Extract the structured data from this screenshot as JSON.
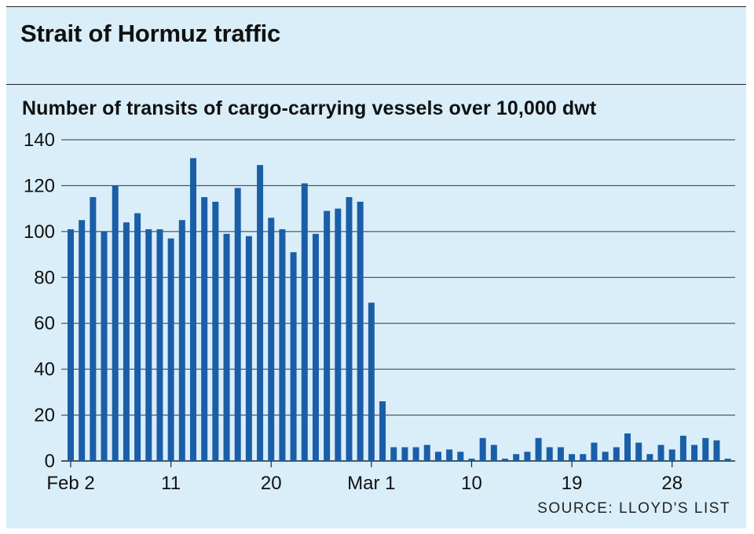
{
  "chart_data": {
    "type": "bar",
    "title": "Strait of Hormuz traffic",
    "subtitle": "Number of transits of cargo-carrying vessels over 10,000 dwt",
    "source": "SOURCE: LLOYD'S LIST",
    "ylim": [
      0,
      140
    ],
    "y_ticks": [
      "0",
      "20",
      "40",
      "60",
      "80",
      "100",
      "120",
      "140"
    ],
    "x_tick_labels": [
      "Feb 2",
      "11",
      "20",
      "Mar 1",
      "10",
      "19",
      "28"
    ],
    "grid": true,
    "bar_color": "#1b5ea8",
    "categories": [
      "Feb 2",
      "Feb 3",
      "Feb 4",
      "Feb 5",
      "Feb 6",
      "Feb 7",
      "Feb 8",
      "Feb 9",
      "Feb 10",
      "Feb 11",
      "Feb 12",
      "Feb 13",
      "Feb 14",
      "Feb 15",
      "Feb 16",
      "Feb 17",
      "Feb 18",
      "Feb 19",
      "Feb 20",
      "Feb 21",
      "Feb 22",
      "Feb 23",
      "Feb 24",
      "Feb 25",
      "Feb 26",
      "Feb 27",
      "Feb 28",
      "Mar 1",
      "Mar 2",
      "Mar 3",
      "Mar 4",
      "Mar 5",
      "Mar 6",
      "Mar 7",
      "Mar 8",
      "Mar 9",
      "Mar 10",
      "Mar 11",
      "Mar 12",
      "Mar 13",
      "Mar 14",
      "Mar 15",
      "Mar 16",
      "Mar 17",
      "Mar 18",
      "Mar 19",
      "Mar 20",
      "Mar 21",
      "Mar 22",
      "Mar 23",
      "Mar 24",
      "Mar 25",
      "Mar 26",
      "Mar 27",
      "Mar 28",
      "Mar 29",
      "Mar 30",
      "Mar 31",
      "Apr 1",
      "Apr 2"
    ],
    "values": [
      101,
      105,
      115,
      100,
      120,
      104,
      108,
      101,
      101,
      97,
      105,
      132,
      115,
      113,
      99,
      119,
      98,
      129,
      106,
      101,
      91,
      121,
      99,
      109,
      110,
      115,
      113,
      69,
      26,
      6,
      6,
      6,
      7,
      4,
      5,
      4,
      1,
      10,
      7,
      1,
      3,
      4,
      10,
      6,
      6,
      3,
      3,
      8,
      4,
      6,
      12,
      8,
      3,
      7,
      5,
      11,
      7,
      10,
      9,
      1
    ]
  }
}
